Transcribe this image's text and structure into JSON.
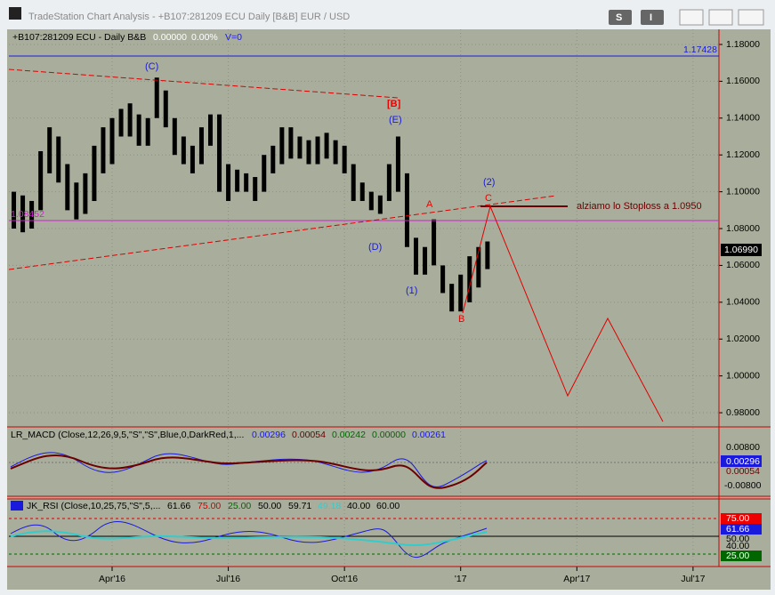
{
  "window": {
    "title": "TradeStation Chart Analysis - +B107:281209 ECU Daily [B&B] EUR / USD",
    "buttons": [
      "S",
      "I"
    ]
  },
  "chart_data": {
    "type": "range-bar",
    "header": [
      "+B107:281209 ECU - Daily  B&B",
      "0.00000",
      "0.00%",
      "V=0"
    ],
    "x": [
      2,
      3,
      4,
      5,
      6,
      7,
      8,
      9,
      10,
      11,
      12,
      13,
      14,
      15,
      16,
      17,
      18,
      19,
      20,
      21,
      22,
      23,
      24,
      25,
      26,
      27,
      28,
      29,
      30,
      31,
      32,
      33,
      34,
      35,
      36,
      37,
      38,
      39,
      40,
      41,
      42,
      43,
      44,
      45,
      46,
      47,
      48,
      49,
      50,
      51,
      52,
      53,
      54,
      55
    ],
    "high": [
      1.1,
      1.098,
      1.095,
      1.122,
      1.135,
      1.13,
      1.115,
      1.105,
      1.11,
      1.125,
      1.135,
      1.14,
      1.145,
      1.148,
      1.142,
      1.14,
      1.162,
      1.155,
      1.14,
      1.13,
      1.125,
      1.135,
      1.142,
      1.142,
      1.115,
      1.112,
      1.11,
      1.108,
      1.12,
      1.125,
      1.135,
      1.135,
      1.13,
      1.128,
      1.13,
      1.132,
      1.128,
      1.125,
      1.115,
      1.105,
      1.1,
      1.098,
      1.115,
      1.13,
      1.11,
      1.075,
      1.07,
      1.085,
      1.06,
      1.05,
      1.055,
      1.065,
      1.07,
      1.073
    ],
    "low": [
      1.08,
      1.078,
      1.08,
      1.09,
      1.11,
      1.105,
      1.09,
      1.085,
      1.088,
      1.095,
      1.11,
      1.115,
      1.13,
      1.13,
      1.125,
      1.125,
      1.14,
      1.135,
      1.12,
      1.115,
      1.11,
      1.115,
      1.125,
      1.1,
      1.095,
      1.1,
      1.1,
      1.095,
      1.1,
      1.11,
      1.115,
      1.118,
      1.118,
      1.115,
      1.115,
      1.118,
      1.115,
      1.11,
      1.095,
      1.095,
      1.09,
      1.088,
      1.095,
      1.1,
      1.07,
      1.055,
      1.055,
      1.06,
      1.045,
      1.035,
      1.035,
      1.04,
      1.048,
      1.058
    ],
    "color": "#000000",
    "xlim": [
      1.45,
      80.9
    ],
    "xticks": [
      {
        "value": 13,
        "label": "Apr'16"
      },
      {
        "value": 26,
        "label": "Jul'16"
      },
      {
        "value": 39,
        "label": "Oct'16"
      },
      {
        "value": 52,
        "label": "'17"
      },
      {
        "value": 65,
        "label": "Apr'17"
      },
      {
        "value": 78,
        "label": "Jul'17"
      }
    ],
    "ylim": [
      0.9723,
      1.1882
    ],
    "yticks": [
      {
        "value": 1.18,
        "label": "1.18000"
      },
      {
        "value": 1.16,
        "label": "1.16000"
      },
      {
        "value": 1.14,
        "label": "1.14000"
      },
      {
        "value": 1.12,
        "label": "1.12000"
      },
      {
        "value": 1.1,
        "label": "1.10000"
      },
      {
        "value": 1.08,
        "label": "1.08000"
      },
      {
        "value": 1.06,
        "label": "1.06000"
      },
      {
        "value": 1.04,
        "label": "1.04000"
      },
      {
        "value": 1.02,
        "label": "1.02000"
      },
      {
        "value": 1.0,
        "label": "1.00000"
      },
      {
        "value": 0.98,
        "label": "0.98000"
      }
    ],
    "grid": true,
    "price_labels": [
      "1.17428",
      "1.06990",
      "1.08452"
    ],
    "annotations": [
      "(C)",
      "[B]",
      "(E)",
      "A",
      "C",
      "(2)",
      "(D)",
      "(1)",
      "B",
      "alziamo lo Stoploss a 1.0950"
    ]
  },
  "macd": {
    "legend": [
      "LR_MACD (Close,12,26,9,5,\"S\",\"S\",Blue,0,DarkRed,1,...",
      "0.00296",
      "0.00054",
      "0.00242",
      "0.00000",
      "0.00261"
    ],
    "axis": [
      "0.00800",
      "0.00296",
      "0.00054",
      "-0.00800"
    ]
  },
  "rsi": {
    "legend": [
      "JK_RSI (Close,10,25,75,\"S\",5,...",
      "61.66",
      "75.00",
      "25.00",
      "50.00",
      "59.71",
      "49.18",
      "40.00",
      "60.00"
    ],
    "axis": [
      "75.00",
      "61.66",
      "50.00",
      "40.00",
      "25.00"
    ]
  }
}
